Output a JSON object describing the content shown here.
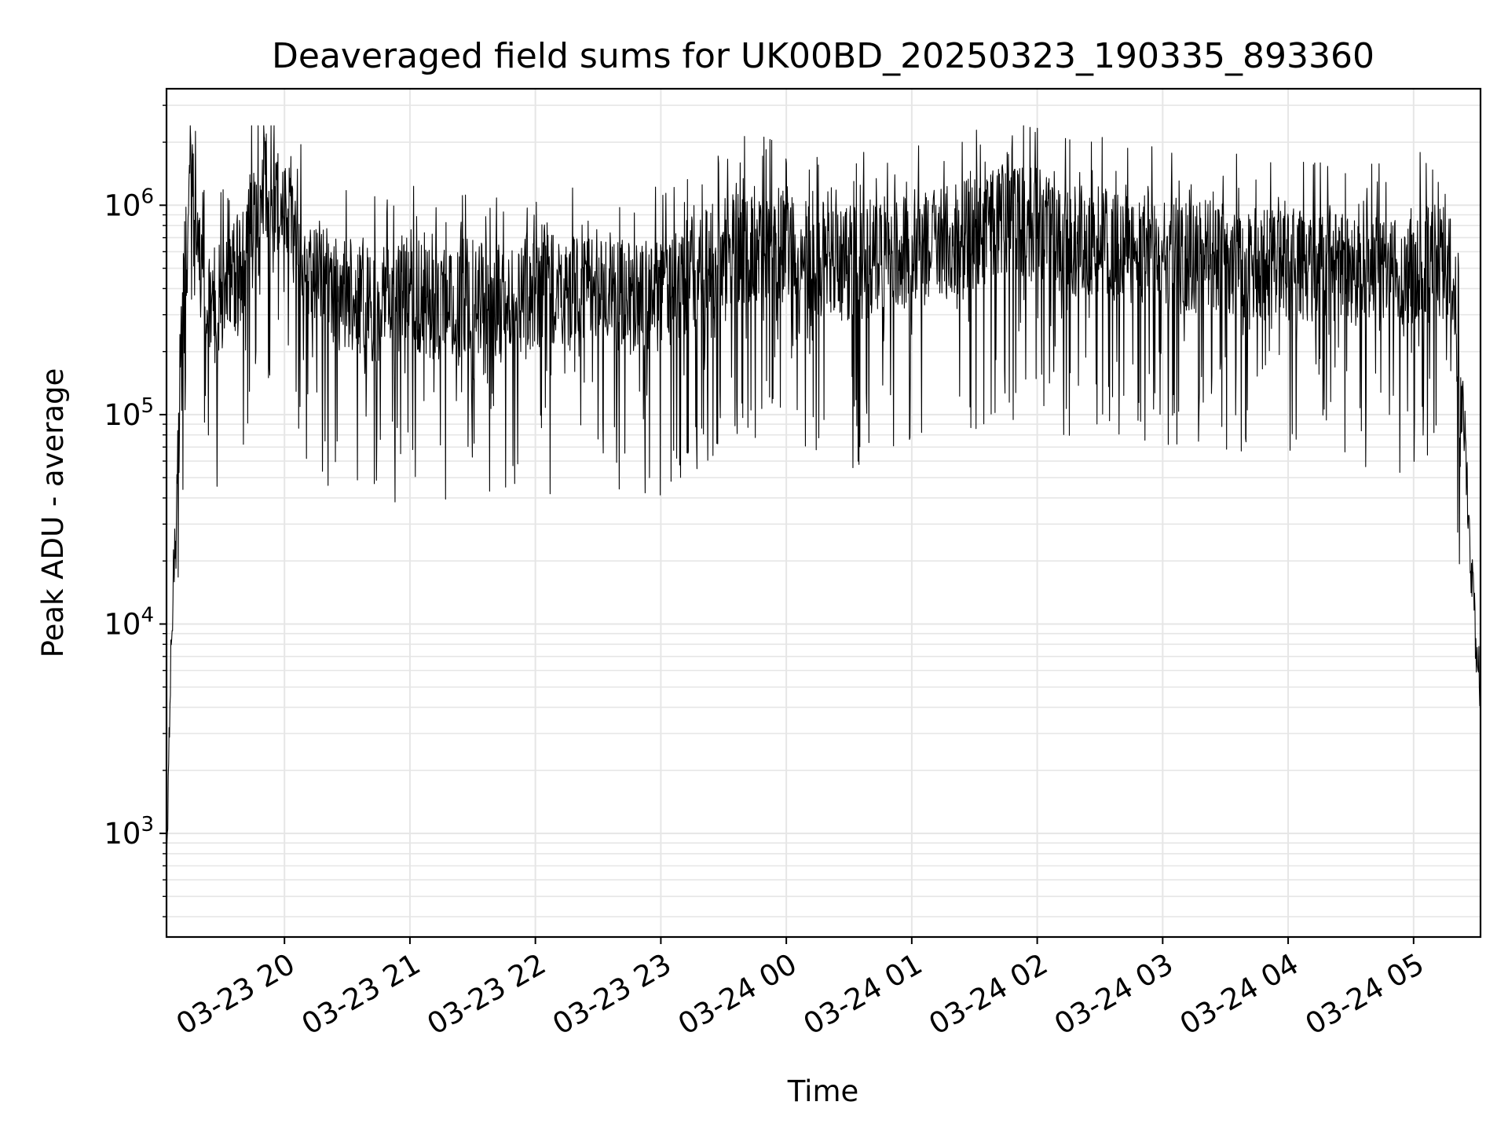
{
  "chart_data": {
    "type": "line",
    "title": "Deaveraged field sums for UK00BD_20250323_190335_893360",
    "xlabel": "Time",
    "ylabel": "Peak ADU - average",
    "yscale": "log",
    "xlim": [
      "2025-03-23T19:03:35",
      "2025-03-24T05:32:00"
    ],
    "ylim": [
      320,
      3600000
    ],
    "grid": true,
    "line_color": "#000000",
    "grid_color": "#e6e6e6",
    "x_ticks": [
      {
        "value": "2025-03-23T20:00:00",
        "label": "03-23 20"
      },
      {
        "value": "2025-03-23T21:00:00",
        "label": "03-23 21"
      },
      {
        "value": "2025-03-23T22:00:00",
        "label": "03-23 22"
      },
      {
        "value": "2025-03-23T23:00:00",
        "label": "03-23 23"
      },
      {
        "value": "2025-03-24T00:00:00",
        "label": "03-24 00"
      },
      {
        "value": "2025-03-24T01:00:00",
        "label": "03-24 01"
      },
      {
        "value": "2025-03-24T02:00:00",
        "label": "03-24 02"
      },
      {
        "value": "2025-03-24T03:00:00",
        "label": "03-24 03"
      },
      {
        "value": "2025-03-24T04:00:00",
        "label": "03-24 04"
      },
      {
        "value": "2025-03-24T05:00:00",
        "label": "03-24 05"
      }
    ],
    "y_ticks": [
      {
        "value": 1000,
        "base": "10",
        "exp": "3"
      },
      {
        "value": 10000,
        "base": "10",
        "exp": "4"
      },
      {
        "value": 100000,
        "base": "10",
        "exp": "5"
      },
      {
        "value": 1000000,
        "base": "10",
        "exp": "6"
      }
    ],
    "series": [
      {
        "x": [
          "2025-03-23T19:03:35",
          "2025-03-23T19:04:30",
          "2025-03-23T19:06:00",
          "2025-03-23T19:08:00",
          "2025-03-23T19:10:00",
          "2025-03-23T19:12:00",
          "2025-03-23T19:14:00",
          "2025-03-23T19:16:00",
          "2025-03-23T19:18:00",
          "2025-03-23T19:20:00",
          "2025-03-23T19:25:00",
          "2025-03-23T19:30:00",
          "2025-03-23T19:35:00",
          "2025-03-23T19:40:00",
          "2025-03-23T19:45:00",
          "2025-03-23T19:50:00",
          "2025-03-23T19:55:00",
          "2025-03-23T20:00:00",
          "2025-03-23T20:10:00",
          "2025-03-23T20:20:00",
          "2025-03-23T20:30:00",
          "2025-03-23T20:45:00",
          "2025-03-23T21:00:00",
          "2025-03-23T21:15:00",
          "2025-03-23T21:30:00",
          "2025-03-23T21:45:00",
          "2025-03-23T22:00:00",
          "2025-03-23T22:15:00",
          "2025-03-23T22:30:00",
          "2025-03-23T22:45:00",
          "2025-03-23T23:00:00",
          "2025-03-23T23:15:00",
          "2025-03-23T23:30:00",
          "2025-03-23T23:45:00",
          "2025-03-24T00:00:00",
          "2025-03-24T00:15:00",
          "2025-03-24T00:30:00",
          "2025-03-24T00:45:00",
          "2025-03-24T01:00:00",
          "2025-03-24T01:15:00",
          "2025-03-24T01:30:00",
          "2025-03-24T01:45:00",
          "2025-03-24T02:00:00",
          "2025-03-24T02:15:00",
          "2025-03-24T02:30:00",
          "2025-03-24T02:45:00",
          "2025-03-24T03:00:00",
          "2025-03-24T03:15:00",
          "2025-03-24T03:30:00",
          "2025-03-24T03:45:00",
          "2025-03-24T04:00:00",
          "2025-03-24T04:15:00",
          "2025-03-24T04:30:00",
          "2025-03-24T04:45:00",
          "2025-03-24T05:00:00",
          "2025-03-24T05:15:00",
          "2025-03-24T05:20:00",
          "2025-03-24T05:24:00",
          "2025-03-24T05:26:00",
          "2025-03-24T05:28:00",
          "2025-03-24T05:30:00",
          "2025-03-24T05:32:00"
        ],
        "y": [
          500,
          2400,
          10000,
          30000,
          100000,
          500000,
          1000000,
          2400000,
          800000,
          500000,
          300000,
          400000,
          450000,
          600000,
          900000,
          1300000,
          1100000,
          900000,
          600000,
          450000,
          400000,
          350000,
          400000,
          350000,
          400000,
          350000,
          420000,
          400000,
          450000,
          380000,
          400000,
          500000,
          650000,
          700000,
          650000,
          600000,
          550000,
          600000,
          650000,
          700000,
          800000,
          900000,
          850000,
          750000,
          700000,
          650000,
          650000,
          600000,
          600000,
          550000,
          550000,
          550000,
          500000,
          500000,
          550000,
          700000,
          300000,
          100000,
          40000,
          15000,
          8000,
          4500
        ]
      }
    ]
  }
}
